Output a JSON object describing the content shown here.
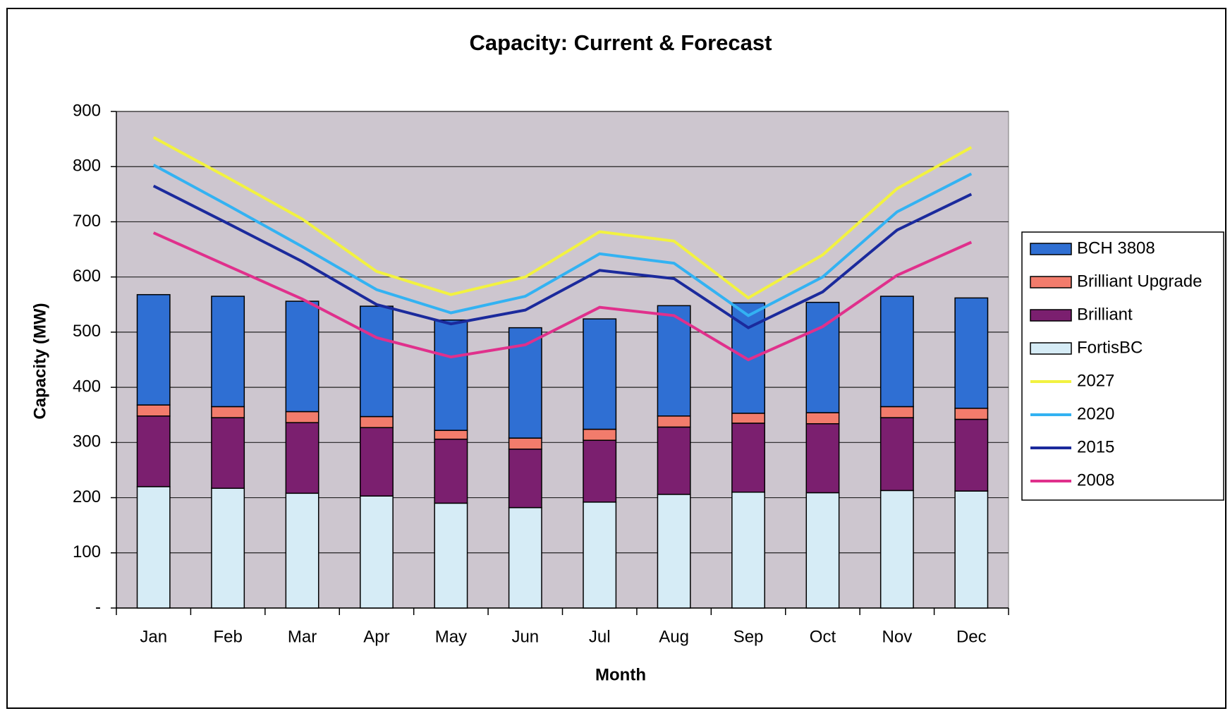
{
  "chart_data": {
    "type": "bar",
    "title": "Capacity: Current & Forecast",
    "x_label": "Month",
    "y_label": "Capacity (MW)",
    "categories": [
      "Jan",
      "Feb",
      "Mar",
      "Apr",
      "May",
      "Jun",
      "Jul",
      "Aug",
      "Sep",
      "Oct",
      "Nov",
      "Dec"
    ],
    "series": [
      {
        "name": "FortisBC",
        "type": "bar",
        "color": "#d6ecf6",
        "values": [
          220,
          217,
          208,
          203,
          190,
          182,
          192,
          206,
          210,
          209,
          213,
          212
        ]
      },
      {
        "name": "Brilliant",
        "type": "bar",
        "color": "#7b1f6f",
        "values": [
          128,
          128,
          128,
          124,
          116,
          106,
          112,
          122,
          125,
          125,
          132,
          130
        ]
      },
      {
        "name": "Brilliant Upgrade",
        "type": "bar",
        "color": "#f27c6c",
        "values": [
          20,
          20,
          20,
          20,
          16,
          20,
          20,
          20,
          18,
          20,
          20,
          20
        ]
      },
      {
        "name": "BCH 3808",
        "type": "bar",
        "color": "#2f6fd3",
        "values": [
          200,
          200,
          200,
          200,
          200,
          200,
          200,
          200,
          200,
          200,
          200,
          200
        ]
      },
      {
        "name": "2008",
        "type": "line",
        "color": "#e0308c",
        "values": [
          680,
          620,
          560,
          490,
          455,
          477,
          545,
          530,
          450,
          510,
          603,
          663
        ]
      },
      {
        "name": "2015",
        "type": "line",
        "color": "#1b2a9c",
        "values": [
          765,
          697,
          628,
          550,
          515,
          540,
          612,
          597,
          508,
          573,
          685,
          750
        ]
      },
      {
        "name": "2020",
        "type": "line",
        "color": "#33b2f2",
        "values": [
          803,
          730,
          655,
          577,
          535,
          565,
          642,
          625,
          530,
          600,
          718,
          787
        ]
      },
      {
        "name": "2027",
        "type": "line",
        "color": "#f2f240",
        "values": [
          853,
          780,
          705,
          610,
          568,
          600,
          682,
          665,
          562,
          640,
          760,
          835
        ]
      }
    ],
    "ylim": [
      0,
      900
    ],
    "yticks": [
      {
        "value": 0,
        "label": "-"
      },
      100,
      200,
      300,
      400,
      500,
      600,
      700,
      800,
      900
    ],
    "grid": true,
    "legend": "right"
  }
}
